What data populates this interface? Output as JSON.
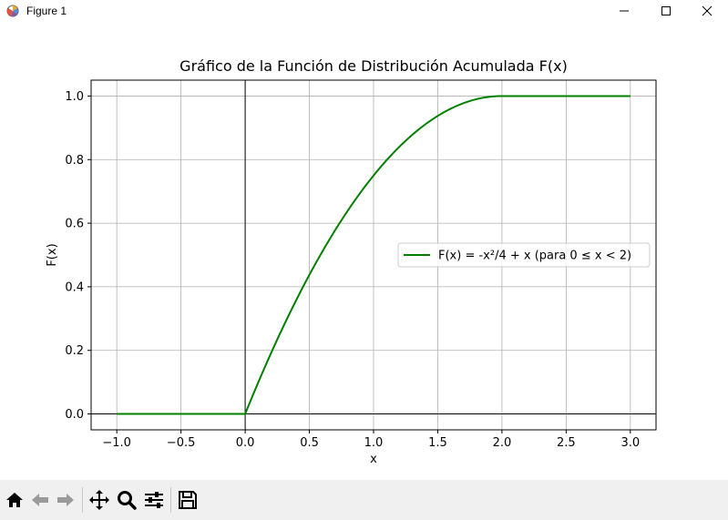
{
  "window": {
    "title": "Figure 1"
  },
  "toolbar": {
    "tools": [
      "home-icon",
      "back-arrow-icon",
      "forward-arrow-icon",
      "pan-icon",
      "zoom-icon",
      "configure-subplots-icon",
      "save-icon"
    ]
  },
  "chart_data": {
    "type": "line",
    "title": "Gráfico de la Función de Distribución Acumulada F(x)",
    "xlabel": "x",
    "ylabel": "F(x)",
    "xlim": [
      -1.2,
      3.2
    ],
    "ylim": [
      -0.05,
      1.05
    ],
    "xticks": [
      -1.0,
      -0.5,
      0.0,
      0.5,
      1.0,
      1.5,
      2.0,
      2.5,
      3.0
    ],
    "xtick_labels": [
      "−1.0",
      "−0.5",
      "0.0",
      "0.5",
      "1.0",
      "1.5",
      "2.0",
      "2.5",
      "3.0"
    ],
    "yticks": [
      0.0,
      0.2,
      0.4,
      0.6,
      0.8,
      1.0
    ],
    "ytick_labels": [
      "0.0",
      "0.2",
      "0.4",
      "0.6",
      "0.8",
      "1.0"
    ],
    "grid": true,
    "legend_position": "center-right",
    "reference_lines": {
      "horizontal_y": 0,
      "vertical_x": 0,
      "color": "#000000"
    },
    "series": [
      {
        "name": "F(x) = -x²/4 + x (para 0 ≤ x < 2)",
        "color": "#008000",
        "x": [
          -1.0,
          -0.5,
          0.0,
          0.25,
          0.5,
          0.75,
          1.0,
          1.25,
          1.5,
          1.75,
          2.0,
          2.5,
          3.0
        ],
        "y": [
          0.0,
          0.0,
          0.0,
          0.234,
          0.4375,
          0.609,
          0.75,
          0.859,
          0.9375,
          0.984,
          1.0,
          1.0,
          1.0
        ]
      }
    ]
  }
}
